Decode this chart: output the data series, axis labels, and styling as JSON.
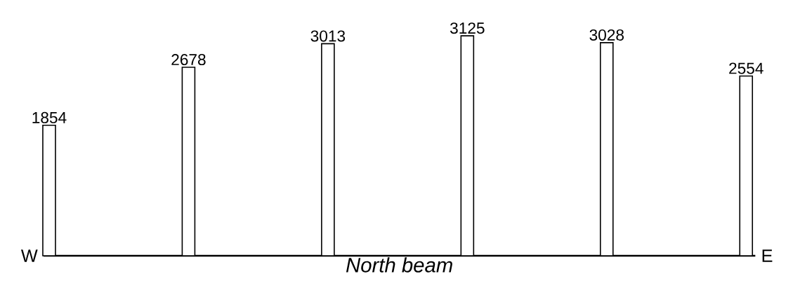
{
  "chart_data": {
    "type": "bar",
    "xlabel": "North beam",
    "categories": [
      null,
      null,
      null,
      null,
      null,
      null
    ],
    "values": [
      1854,
      2678,
      3013,
      3125,
      3028,
      2554
    ],
    "color": "#ffffff",
    "data_labels": true,
    "annotations": [
      "W",
      "E"
    ]
  }
}
